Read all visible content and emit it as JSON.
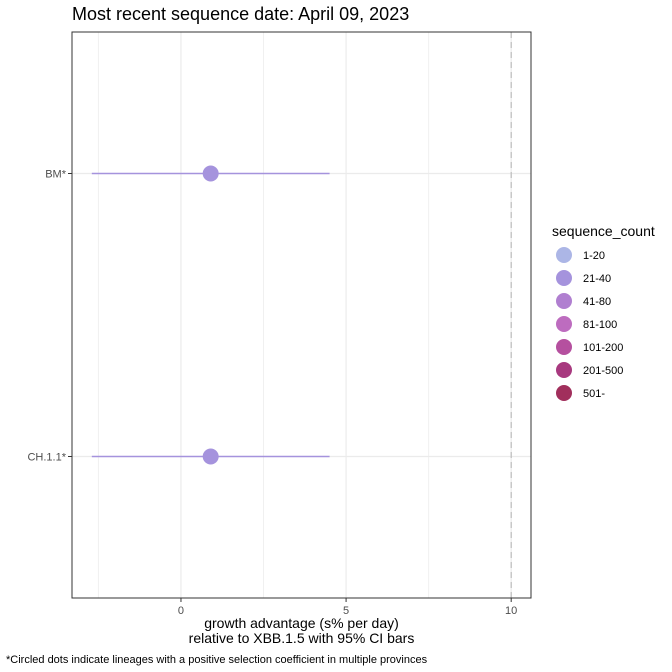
{
  "chart_data": {
    "type": "scatter",
    "title": "Most recent sequence date: April 09, 2023",
    "xlabel_line1": "growth advantage (s% per day)",
    "xlabel_line2": "relative to  XBB.1.5  with 95% CI bars",
    "caption": "*Circled dots indicate lineages with a positive selection coefficient in multiple provinces",
    "xlim": [
      -3.3,
      10.6
    ],
    "x_ticks": [
      0,
      5,
      10
    ],
    "x_minor": [
      -2.5,
      2.5,
      7.5
    ],
    "reference_x": 10,
    "categories": [
      "BM*",
      "CH.1.1*"
    ],
    "points": [
      {
        "label": "BM*",
        "x": 0.9,
        "ci_low": -2.7,
        "ci_high": 4.5,
        "color": "#a593dd"
      },
      {
        "label": "CH.1.1*",
        "x": 0.9,
        "ci_low": -2.7,
        "ci_high": 4.5,
        "color": "#a593dd"
      }
    ],
    "grid": true,
    "legend": {
      "title": "sequence_count",
      "position": "right",
      "items": [
        {
          "label": "1-20",
          "color": "#acb6e6"
        },
        {
          "label": "21-40",
          "color": "#a593dd"
        },
        {
          "label": "41-80",
          "color": "#b07fd0"
        },
        {
          "label": "81-100",
          "color": "#bd6cbf"
        },
        {
          "label": "101-200",
          "color": "#b5509f"
        },
        {
          "label": "201-500",
          "color": "#a8397f"
        },
        {
          "label": "501-",
          "color": "#a12f5c"
        }
      ]
    }
  }
}
